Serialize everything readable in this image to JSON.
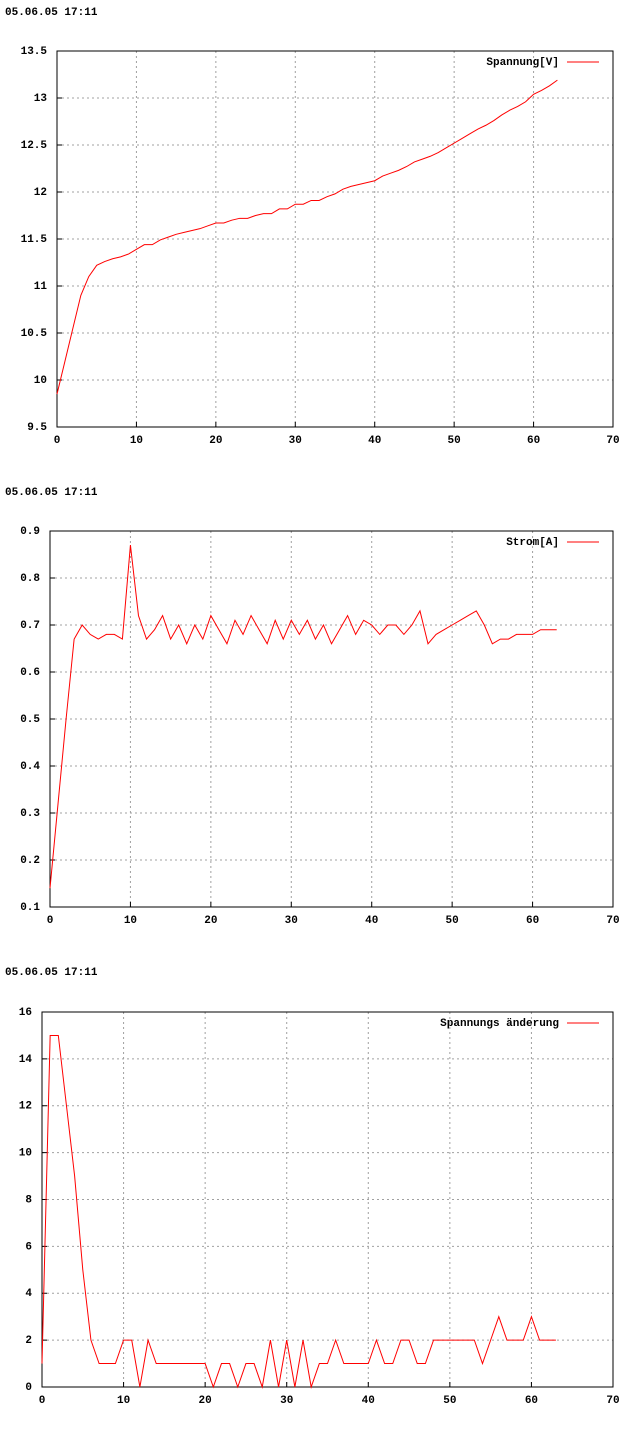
{
  "chart_data": [
    {
      "type": "line",
      "title": "05.06.05 17:11",
      "x": [
        0,
        1,
        2,
        3,
        4,
        5,
        6,
        7,
        8,
        9,
        10,
        11,
        12,
        13,
        14,
        15,
        16,
        17,
        18,
        19,
        20,
        21,
        22,
        23,
        24,
        25,
        26,
        27,
        28,
        29,
        30,
        31,
        32,
        33,
        34,
        35,
        36,
        37,
        38,
        39,
        40,
        41,
        42,
        43,
        44,
        45,
        46,
        47,
        48,
        49,
        50,
        51,
        52,
        53,
        54,
        55,
        56,
        57,
        58,
        59,
        60,
        61,
        62,
        63
      ],
      "series": [
        {
          "name": "Spannung[V]",
          "color": "#ff0000",
          "values": [
            9.85,
            10.2,
            10.55,
            10.9,
            11.1,
            11.22,
            11.26,
            11.29,
            11.31,
            11.34,
            11.39,
            11.44,
            11.44,
            11.49,
            11.52,
            11.55,
            11.57,
            11.59,
            11.61,
            11.64,
            11.67,
            11.67,
            11.7,
            11.72,
            11.72,
            11.75,
            11.77,
            11.77,
            11.82,
            11.82,
            11.87,
            11.87,
            11.91,
            11.91,
            11.95,
            11.98,
            12.03,
            12.06,
            12.08,
            12.1,
            12.12,
            12.17,
            12.2,
            12.23,
            12.27,
            12.32,
            12.35,
            12.38,
            12.42,
            12.47,
            12.52,
            12.57,
            12.62,
            12.67,
            12.71,
            12.76,
            12.82,
            12.87,
            12.91,
            12.96,
            13.04,
            13.08,
            13.13,
            13.19
          ]
        }
      ],
      "xlim": [
        0,
        70
      ],
      "xticks": [
        0,
        10,
        20,
        30,
        40,
        50,
        60,
        70
      ],
      "ylim": [
        9.5,
        13.5
      ],
      "yticks": [
        9.5,
        10,
        10.5,
        11,
        11.5,
        12,
        12.5,
        13,
        13.5
      ],
      "grid": true,
      "legend": "top-right"
    },
    {
      "type": "line",
      "title": "05.06.05 17:11",
      "x": [
        0,
        1,
        2,
        3,
        4,
        5,
        6,
        7,
        8,
        9,
        10,
        11,
        12,
        13,
        14,
        15,
        16,
        17,
        18,
        19,
        20,
        21,
        22,
        23,
        24,
        25,
        26,
        27,
        28,
        29,
        30,
        31,
        32,
        33,
        34,
        35,
        36,
        37,
        38,
        39,
        40,
        41,
        42,
        43,
        44,
        45,
        46,
        47,
        48,
        49,
        50,
        51,
        52,
        53,
        54,
        55,
        56,
        57,
        58,
        59,
        60,
        61,
        62,
        63
      ],
      "series": [
        {
          "name": "Strom[A]",
          "color": "#ff0000",
          "values": [
            0.14,
            0.32,
            0.5,
            0.67,
            0.7,
            0.68,
            0.67,
            0.68,
            0.68,
            0.67,
            0.87,
            0.72,
            0.67,
            0.69,
            0.72,
            0.67,
            0.7,
            0.66,
            0.7,
            0.67,
            0.72,
            0.69,
            0.66,
            0.71,
            0.68,
            0.72,
            0.69,
            0.66,
            0.71,
            0.67,
            0.71,
            0.68,
            0.71,
            0.67,
            0.7,
            0.66,
            0.69,
            0.72,
            0.68,
            0.71,
            0.7,
            0.68,
            0.7,
            0.7,
            0.68,
            0.7,
            0.73,
            0.66,
            0.68,
            0.69,
            0.7,
            0.71,
            0.72,
            0.73,
            0.7,
            0.66,
            0.67,
            0.67,
            0.68,
            0.68,
            0.68,
            0.69,
            0.69,
            0.69
          ]
        }
      ],
      "xlim": [
        0,
        70
      ],
      "xticks": [
        0,
        10,
        20,
        30,
        40,
        50,
        60,
        70
      ],
      "ylim": [
        0.1,
        0.9
      ],
      "yticks": [
        0.1,
        0.2,
        0.3,
        0.4,
        0.5,
        0.6,
        0.7,
        0.8,
        0.9
      ],
      "grid": true,
      "legend": "top-right"
    },
    {
      "type": "line",
      "title": "05.06.05 17:11",
      "x": [
        0,
        1,
        2,
        3,
        4,
        5,
        6,
        7,
        8,
        9,
        10,
        11,
        12,
        13,
        14,
        15,
        16,
        17,
        18,
        19,
        20,
        21,
        22,
        23,
        24,
        25,
        26,
        27,
        28,
        29,
        30,
        31,
        32,
        33,
        34,
        35,
        36,
        37,
        38,
        39,
        40,
        41,
        42,
        43,
        44,
        45,
        46,
        47,
        48,
        49,
        50,
        51,
        52,
        53,
        54,
        55,
        56,
        57,
        58,
        59,
        60,
        61,
        62,
        63
      ],
      "series": [
        {
          "name": "Spannungs änderung",
          "color": "#ff0000",
          "values": [
            1,
            15,
            15,
            12,
            9,
            5,
            2,
            1,
            1,
            1,
            2,
            2,
            0,
            2,
            1,
            1,
            1,
            1,
            1,
            1,
            1,
            0,
            1,
            1,
            0,
            1,
            1,
            0,
            2,
            0,
            2,
            0,
            2,
            0,
            1,
            1,
            2,
            1,
            1,
            1,
            1,
            2,
            1,
            1,
            2,
            2,
            1,
            1,
            2,
            2,
            2,
            2,
            2,
            2,
            1,
            2,
            3,
            2,
            2,
            2,
            3,
            2,
            2,
            2
          ]
        }
      ],
      "xlim": [
        0,
        70
      ],
      "xticks": [
        0,
        10,
        20,
        30,
        40,
        50,
        60,
        70
      ],
      "ylim": [
        0,
        16
      ],
      "yticks": [
        0,
        2,
        4,
        6,
        8,
        10,
        12,
        14,
        16
      ],
      "grid": true,
      "legend": "top-right"
    }
  ]
}
